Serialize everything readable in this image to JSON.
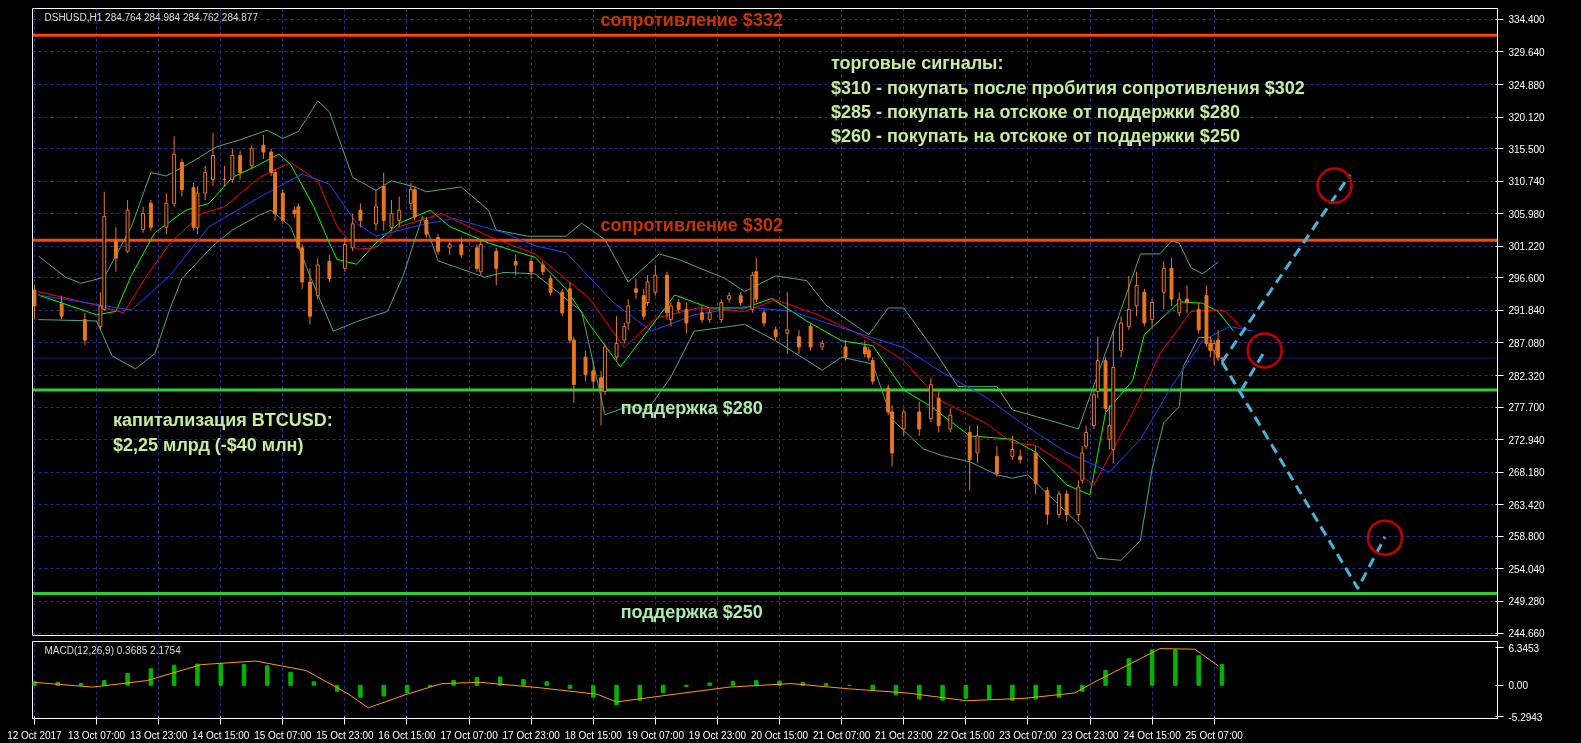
{
  "chart_data": [
    {
      "type": "candlestick",
      "title": "DSHUSD,H1 284.764 284.984 284.762 284.877",
      "color": "#e87722",
      "grid": true,
      "tick_labels": "y",
      "xlim": [
        "2017-10-12T14:30",
        "2017-10-28T08:00"
      ],
      "ylim": [
        244.3,
        336
      ],
      "xticks": [
        {
          "value": "2017-10-12T15:00",
          "label": null
        },
        {
          "value": "2017-10-13T07:00",
          "label": null
        },
        {
          "value": "2017-10-13T23:00",
          "label": null
        },
        {
          "value": "2017-10-14T15:00",
          "label": null
        },
        {
          "value": "2017-10-15T07:00",
          "label": null
        },
        {
          "value": "2017-10-15T23:00",
          "label": null
        },
        {
          "value": "2017-10-16T15:00",
          "label": null
        },
        {
          "value": "2017-10-17T07:00",
          "label": null
        },
        {
          "value": "2017-10-17T23:00",
          "label": null
        },
        {
          "value": "2017-10-18T15:00",
          "label": null
        },
        {
          "value": "2017-10-19T07:00",
          "label": null
        },
        {
          "value": "2017-10-19T23:00",
          "label": null
        },
        {
          "value": "2017-10-20T15:00",
          "label": null
        },
        {
          "value": "2017-10-21T07:00",
          "label": null
        },
        {
          "value": "2017-10-21T23:00",
          "label": null
        },
        {
          "value": "2017-10-22T15:00",
          "label": null
        },
        {
          "value": "2017-10-23T07:00",
          "label": null
        },
        {
          "value": "2017-10-23T23:00",
          "label": null
        },
        {
          "value": "2017-10-24T15:00",
          "label": null
        },
        {
          "value": "2017-10-25T07:00",
          "label": null
        }
      ],
      "yticks": [
        {
          "value": 334.4,
          "label": "334.400"
        },
        {
          "value": 329.64,
          "label": "329.640"
        },
        {
          "value": 324.88,
          "label": "324.880"
        },
        {
          "value": 320.12,
          "label": "320.120"
        },
        {
          "value": 315.5,
          "label": "315.500"
        },
        {
          "value": 310.74,
          "label": "310.740"
        },
        {
          "value": 305.98,
          "label": "305.980"
        },
        {
          "value": 301.22,
          "label": "301.220"
        },
        {
          "value": 296.6,
          "label": "296.600"
        },
        {
          "value": 291.84,
          "label": "291.840"
        },
        {
          "value": 287.08,
          "label": "287.080"
        },
        {
          "value": 282.32,
          "label": "282.320"
        },
        {
          "value": 277.7,
          "label": "277.700"
        },
        {
          "value": 272.94,
          "label": "272.940"
        },
        {
          "value": 268.18,
          "label": "268.180"
        },
        {
          "value": 263.42,
          "label": "263.420"
        },
        {
          "value": 258.8,
          "label": "258.800"
        },
        {
          "value": 254.04,
          "label": "254.040"
        },
        {
          "value": 249.28,
          "label": "249.280"
        },
        {
          "value": 244.66,
          "label": "244.660"
        }
      ],
      "x": [
        "2017-10-12T15:00",
        "2017-10-12T22:00",
        "2017-10-13T04:00",
        "2017-10-13T08:00",
        "2017-10-13T09:00",
        "2017-10-13T12:00",
        "2017-10-13T15:00",
        "2017-10-13T19:00",
        "2017-10-13T21:00",
        "2017-10-14T01:00",
        "2017-10-14T03:00",
        "2017-10-14T05:00",
        "2017-10-14T08:00",
        "2017-10-14T09:00",
        "2017-10-14T11:00",
        "2017-10-14T13:00",
        "2017-10-14T16:00",
        "2017-10-14T18:00",
        "2017-10-14T20:00",
        "2017-10-14T23:00",
        "2017-10-15T02:00",
        "2017-10-15T04:00",
        "2017-10-15T05:00",
        "2017-10-15T07:00",
        "2017-10-15T10:00",
        "2017-10-15T11:00",
        "2017-10-15T12:00",
        "2017-10-15T14:00",
        "2017-10-15T16:00",
        "2017-10-15T19:00",
        "2017-10-15T23:00",
        "2017-10-16T01:00",
        "2017-10-16T03:00",
        "2017-10-16T07:00",
        "2017-10-16T09:00",
        "2017-10-16T11:00",
        "2017-10-16T13:00",
        "2017-10-16T16:00",
        "2017-10-16T17:00",
        "2017-10-16T20:00",
        "2017-10-16T23:00",
        "2017-10-17T02:00",
        "2017-10-17T05:00",
        "2017-10-17T09:00",
        "2017-10-17T10:00",
        "2017-10-17T14:00",
        "2017-10-17T19:00",
        "2017-10-17T23:00",
        "2017-10-18T02:00",
        "2017-10-18T04:00",
        "2017-10-18T07:00",
        "2017-10-18T09:00",
        "2017-10-18T10:00",
        "2017-10-18T13:00",
        "2017-10-18T15:00",
        "2017-10-18T17:00",
        "2017-10-18T18:00",
        "2017-10-18T21:00",
        "2017-10-18T23:00",
        "2017-10-19T00:00",
        "2017-10-19T02:00",
        "2017-10-19T04:00",
        "2017-10-19T05:00",
        "2017-10-19T07:00",
        "2017-10-19T10:00",
        "2017-10-19T11:00",
        "2017-10-19T13:00",
        "2017-10-19T15:00",
        "2017-10-19T19:00",
        "2017-10-19T21:00",
        "2017-10-20T00:00",
        "2017-10-20T02:00",
        "2017-10-20T05:00",
        "2017-10-20T08:00",
        "2017-10-20T09:00",
        "2017-10-20T11:00",
        "2017-10-20T14:00",
        "2017-10-20T17:00",
        "2017-10-20T20:00",
        "2017-10-20T23:00",
        "2017-10-21T02:00",
        "2017-10-21T08:00",
        "2017-10-21T13:00",
        "2017-10-21T14:00",
        "2017-10-21T15:00",
        "2017-10-21T19:00",
        "2017-10-21T20:00",
        "2017-10-21T23:00",
        "2017-10-22T03:00",
        "2017-10-22T06:00",
        "2017-10-22T08:00",
        "2017-10-22T11:00",
        "2017-10-22T16:00",
        "2017-10-22T18:00",
        "2017-10-22T23:00",
        "2017-10-23T03:00",
        "2017-10-23T05:00",
        "2017-10-23T09:00",
        "2017-10-23T12:00",
        "2017-10-23T15:00",
        "2017-10-23T17:00",
        "2017-10-23T20:00",
        "2017-10-23T21:00",
        "2017-10-23T22:00",
        "2017-10-24T00:00",
        "2017-10-24T01:00",
        "2017-10-24T03:00",
        "2017-10-24T04:00",
        "2017-10-24T05:00",
        "2017-10-24T07:00",
        "2017-10-24T09:00",
        "2017-10-24T11:00",
        "2017-10-24T13:00",
        "2017-10-24T15:00",
        "2017-10-24T18:00",
        "2017-10-24T20:00",
        "2017-10-24T22:00",
        "2017-10-25T00:00",
        "2017-10-25T03:00",
        "2017-10-25T05:00",
        "2017-10-25T06:00",
        "2017-10-25T07:00",
        "2017-10-25T08:00",
        "2017-10-25T09:00"
      ],
      "ohlc": [
        [
          294.8,
          295.6,
          290.5,
          292.5
        ],
        [
          292.8,
          294.0,
          290.5,
          291.0
        ],
        [
          290.5,
          291.5,
          286.8,
          287.5
        ],
        [
          289.5,
          294.5,
          289.0,
          292.5
        ],
        [
          292.0,
          309.2,
          291.8,
          305.6
        ],
        [
          302.0,
          304.0,
          297.5,
          299.5
        ],
        [
          300.5,
          308.0,
          300.2,
          306.5
        ],
        [
          303.7,
          307.0,
          303.2,
          306.0
        ],
        [
          307.5,
          308.0,
          303.5,
          304.0
        ],
        [
          304.0,
          309.0,
          303.0,
          307.5
        ],
        [
          307.5,
          317.3,
          307.0,
          314.7
        ],
        [
          313.5,
          314.0,
          308.5,
          309.5
        ],
        [
          309.8,
          310.5,
          303.5,
          304.0
        ],
        [
          304.0,
          310.0,
          303.0,
          309.0
        ],
        [
          309.0,
          313.0,
          308.0,
          312.0
        ],
        [
          311.0,
          317.8,
          310.0,
          314.5
        ],
        [
          311.0,
          313.0,
          310.0,
          311.0
        ],
        [
          311.0,
          315.5,
          310.5,
          314.5
        ],
        [
          314.5,
          315.2,
          311.0,
          312.0
        ],
        [
          313.0,
          316.0,
          312.5,
          315.5
        ],
        [
          316.0,
          317.5,
          314.0,
          315.0
        ],
        [
          315.0,
          315.5,
          311.5,
          312.0
        ],
        [
          312.0,
          312.5,
          305.0,
          306.0
        ],
        [
          309.0,
          309.5,
          304.5,
          305.0
        ],
        [
          306.5,
          307.0,
          305.5,
          306.0
        ],
        [
          307.0,
          307.5,
          300.8,
          301.0
        ],
        [
          301.0,
          301.5,
          295.0,
          296.0
        ],
        [
          296.0,
          298.0,
          289.8,
          291.0
        ],
        [
          294.0,
          299.5,
          293.5,
          298.5
        ],
        [
          299.0,
          300.0,
          296.0,
          296.5
        ],
        [
          298.0,
          302.5,
          297.5,
          301.5
        ],
        [
          301.0,
          306.0,
          300.5,
          304.5
        ],
        [
          306.5,
          307.5,
          304.0,
          305.0
        ],
        [
          304.5,
          309.5,
          303.5,
          307.0
        ],
        [
          310.0,
          312.0,
          303.5,
          305.0
        ],
        [
          304.0,
          308.0,
          303.5,
          306.0
        ],
        [
          305.0,
          308.5,
          304.0,
          306.5
        ],
        [
          307.5,
          310.5,
          306.5,
          309.5
        ],
        [
          309.5,
          310.0,
          305.0,
          305.5
        ],
        [
          305.0,
          305.5,
          302.5,
          303.0
        ],
        [
          302.5,
          303.0,
          300.0,
          300.5
        ],
        [
          301.0,
          302.0,
          300.0,
          301.5
        ],
        [
          301.5,
          302.5,
          299.5,
          300.0
        ],
        [
          301.0,
          301.5,
          297.5,
          298.0
        ],
        [
          297.5,
          302.0,
          297.0,
          301.5
        ],
        [
          300.5,
          301.0,
          295.5,
          298.0
        ],
        [
          299.0,
          300.0,
          297.0,
          298.5
        ],
        [
          299.0,
          299.5,
          296.5,
          297.5
        ],
        [
          298.5,
          299.0,
          297.0,
          297.5
        ],
        [
          296.5,
          297.0,
          294.0,
          294.5
        ],
        [
          294.5,
          295.0,
          291.0,
          291.5
        ],
        [
          295.0,
          296.0,
          287.0,
          287.5
        ],
        [
          287.5,
          288.0,
          278.3,
          281.0
        ],
        [
          285.0,
          286.0,
          281.5,
          282.5
        ],
        [
          283.0,
          284.5,
          280.0,
          281.5
        ],
        [
          282.0,
          283.0,
          275.0,
          280.5
        ],
        [
          280.0,
          287.0,
          279.5,
          286.5
        ],
        [
          285.0,
          291.0,
          284.5,
          287.0
        ],
        [
          287.5,
          290.0,
          287.0,
          289.5
        ],
        [
          290.0,
          293.5,
          289.0,
          292.5
        ],
        [
          295.0,
          296.5,
          293.5,
          294.5
        ],
        [
          294.0,
          295.0,
          290.5,
          291.0
        ],
        [
          293.0,
          297.0,
          292.5,
          296.0
        ],
        [
          294.5,
          298.5,
          294.0,
          297.0
        ],
        [
          297.0,
          297.5,
          290.5,
          291.5
        ],
        [
          290.5,
          293.0,
          289.5,
          292.5
        ],
        [
          293.0,
          293.5,
          291.5,
          292.0
        ],
        [
          292.0,
          293.0,
          288.5,
          290.0
        ],
        [
          291.5,
          292.5,
          290.0,
          290.5
        ],
        [
          290.5,
          292.0,
          290.0,
          291.5
        ],
        [
          290.5,
          293.5,
          290.0,
          293.0
        ],
        [
          293.5,
          294.5,
          293.0,
          294.0
        ],
        [
          294.0,
          294.5,
          292.5,
          293.0
        ],
        [
          292.0,
          297.5,
          291.5,
          297.0
        ],
        [
          297.5,
          299.5,
          293.0,
          293.5
        ],
        [
          291.5,
          292.0,
          289.5,
          290.0
        ],
        [
          289.0,
          289.5,
          287.5,
          288.0
        ],
        [
          288.5,
          294.5,
          285.5,
          289.0
        ],
        [
          288.0,
          289.0,
          285.5,
          286.5
        ],
        [
          289.5,
          290.0,
          286.0,
          286.5
        ],
        [
          286.5,
          287.5,
          286.0,
          287.0
        ],
        [
          286.5,
          287.5,
          284.5,
          285.0
        ],
        [
          286.5,
          287.5,
          285.0,
          285.5
        ],
        [
          286.0,
          286.5,
          284.5,
          285.0
        ],
        [
          284.5,
          285.0,
          281.0,
          281.5
        ],
        [
          280.5,
          281.0,
          276.5,
          277.0
        ],
        [
          277.0,
          278.0,
          269.0,
          271.0
        ],
        [
          274.5,
          277.5,
          273.5,
          277.0
        ],
        [
          277.0,
          278.5,
          273.5,
          274.5
        ],
        [
          276.0,
          282.0,
          275.5,
          281.0
        ],
        [
          279.0,
          280.0,
          274.0,
          275.0
        ],
        [
          274.5,
          277.5,
          274.0,
          276.5
        ],
        [
          274.0,
          275.0,
          265.5,
          270.0
        ],
        [
          271.0,
          275.0,
          269.5,
          273.5
        ],
        [
          270.5,
          272.0,
          267.5,
          268.0
        ],
        [
          270.5,
          273.5,
          270.0,
          271.5
        ],
        [
          270.5,
          271.5,
          269.5,
          270.0
        ],
        [
          271.0,
          272.0,
          265.0,
          266.5
        ],
        [
          265.5,
          266.0,
          260.5,
          262.0
        ],
        [
          262.0,
          265.5,
          261.5,
          265.0
        ],
        [
          265.0,
          265.5,
          261.0,
          262.0
        ],
        [
          262.0,
          267.0,
          261.0,
          266.0
        ],
        [
          267.0,
          272.0,
          266.5,
          271.0
        ],
        [
          272.0,
          275.0,
          271.5,
          274.0
        ],
        [
          275.0,
          280.0,
          274.5,
          279.5
        ],
        [
          280.0,
          288.0,
          279.0,
          284.5
        ],
        [
          284.5,
          285.0,
          277.0,
          277.5
        ],
        [
          273.0,
          278.0,
          271.5,
          275.0
        ],
        [
          271.5,
          289.0,
          269.5,
          283.5
        ],
        [
          286.0,
          291.0,
          285.0,
          290.0
        ],
        [
          289.5,
          296.9,
          289.0,
          292.0
        ],
        [
          292.5,
          297.5,
          291.0,
          295.5
        ],
        [
          294.5,
          295.0,
          289.5,
          290.0
        ],
        [
          290.5,
          293.5,
          289.5,
          293.0
        ],
        [
          294.5,
          299.0,
          292.0,
          298.0
        ],
        [
          298.0,
          299.5,
          292.5,
          293.5
        ],
        [
          291.5,
          294.5,
          291.0,
          293.5
        ],
        [
          293.5,
          295.5,
          291.5,
          293.0
        ],
        [
          292.0,
          293.0,
          288.5,
          289.0
        ],
        [
          294.0,
          295.5,
          286.5,
          287.0
        ],
        [
          287.0,
          288.0,
          285.0,
          286.0
        ],
        [
          286.0,
          287.5,
          283.8,
          287.0
        ],
        [
          287.5,
          289.0,
          284.5,
          285.0
        ],
        [
          284.764,
          284.984,
          284.762,
          284.877
        ]
      ],
      "series": [
        {
          "type": "line",
          "color": "#4fa87a",
          "x": [
            "2017-10-12T16:00",
            "2017-10-12T23:00",
            "2017-10-13T03:00",
            "2017-10-13T09:00",
            "2017-10-13T16:00",
            "2017-10-13T21:00",
            "2017-10-14T01:00",
            "2017-10-14T08:00",
            "2017-10-14T14:00",
            "2017-10-14T20:00",
            "2017-10-15T03:00",
            "2017-10-15T07:00",
            "2017-10-15T11:00",
            "2017-10-15T16:00",
            "2017-10-15T19:00",
            "2017-10-16T01:00",
            "2017-10-16T07:00",
            "2017-10-16T11:00",
            "2017-10-16T17:00",
            "2017-10-16T20:00",
            "2017-10-17T05:00",
            "2017-10-17T12:00",
            "2017-10-17T14:00",
            "2017-10-17T22:00",
            "2017-10-18T08:00",
            "2017-10-18T12:00",
            "2017-10-18T18:00",
            "2017-10-19T00:00",
            "2017-10-19T08:00",
            "2017-10-19T13:00",
            "2017-10-20T01:00",
            "2017-10-20T06:00",
            "2017-10-20T14:00",
            "2017-10-20T22:00",
            "2017-10-21T03:00",
            "2017-10-21T14:00",
            "2017-10-21T19:00",
            "2017-10-21T23:00",
            "2017-10-22T07:00",
            "2017-10-22T13:00",
            "2017-10-22T23:00",
            "2017-10-23T03:00",
            "2017-10-23T13:00",
            "2017-10-23T20:00",
            "2017-10-24T08:00",
            "2017-10-24T12:00",
            "2017-10-24T17:00",
            "2017-10-24T20:00",
            "2017-10-24T22:00",
            "2017-10-25T01:00",
            "2017-10-25T04:00",
            "2017-10-25T08:00"
          ],
          "values": [
            299.8,
            296.7,
            295.8,
            296.7,
            304.1,
            312.0,
            311.5,
            313.7,
            315.8,
            316.8,
            318.2,
            317.0,
            318.0,
            322.5,
            320.9,
            311.3,
            309.4,
            310.8,
            309.9,
            309.2,
            309.9,
            306.5,
            303.6,
            302.7,
            302.7,
            304.6,
            302.2,
            296.0,
            300.1,
            299.3,
            296.5,
            294.6,
            296.9,
            296.2,
            292.6,
            288.3,
            292.2,
            292.2,
            285.9,
            280.7,
            280.7,
            277.3,
            275.7,
            274.5,
            293.6,
            300.1,
            300.1,
            302.0,
            301.7,
            298.1,
            297.2,
            298.9
          ]
        },
        {
          "type": "line",
          "color": "#4fa87a",
          "x": [
            "2017-10-12T16:00",
            "2017-10-13T07:00",
            "2017-10-13T11:00",
            "2017-10-13T17:00",
            "2017-10-13T22:00",
            "2017-10-14T02:00",
            "2017-10-14T05:00",
            "2017-10-14T13:00",
            "2017-10-14T18:00",
            "2017-10-15T01:00",
            "2017-10-15T04:00",
            "2017-10-15T09:00",
            "2017-10-15T14:00",
            "2017-10-15T20:00",
            "2017-10-16T02:00",
            "2017-10-16T10:00",
            "2017-10-16T14:00",
            "2017-10-16T19:00",
            "2017-10-16T23:00",
            "2017-10-17T11:00",
            "2017-10-17T16:00",
            "2017-10-18T00:00",
            "2017-10-18T12:00",
            "2017-10-18T18:00",
            "2017-10-19T00:00",
            "2017-10-19T05:00",
            "2017-10-19T11:00",
            "2017-10-19T17:00",
            "2017-10-20T06:00",
            "2017-10-20T14:00",
            "2017-10-21T02:00",
            "2017-10-21T07:00",
            "2017-10-21T15:00",
            "2017-10-21T20:00",
            "2017-10-22T04:00",
            "2017-10-22T09:00",
            "2017-10-22T16:00",
            "2017-10-22T23:00",
            "2017-10-23T03:00",
            "2017-10-23T07:00",
            "2017-10-23T21:00",
            "2017-10-24T01:00",
            "2017-10-24T07:00",
            "2017-10-24T12:00",
            "2017-10-24T15:00",
            "2017-10-24T18:00",
            "2017-10-24T22:00",
            "2017-10-24T23:00",
            "2017-10-25T03:00",
            "2017-10-25T06:00",
            "2017-10-25T08:00"
          ],
          "values": [
            290.5,
            290.3,
            285.2,
            283.3,
            285.5,
            292.2,
            296.5,
            301.3,
            303.6,
            305.8,
            306.5,
            304.1,
            296.9,
            288.8,
            290.2,
            291.7,
            296.9,
            305.6,
            299.1,
            296.7,
            297.4,
            297.2,
            291.7,
            276.6,
            277.8,
            277.3,
            282.1,
            288.8,
            289.8,
            287.4,
            283.1,
            285.0,
            284.0,
            275.9,
            271.6,
            270.6,
            269.7,
            267.8,
            267.3,
            267.8,
            260.1,
            255.6,
            255.3,
            258.2,
            268.7,
            275.4,
            277.8,
            283.6,
            287.9,
            287.9,
            284.5
          ]
        },
        {
          "type": "line",
          "color": "#00ff00",
          "x": [
            "2017-10-12T16:00",
            "2017-10-13T07:00",
            "2017-10-13T12:00",
            "2017-10-13T16:00",
            "2017-10-13T22:00",
            "2017-10-14T06:00",
            "2017-10-14T12:00",
            "2017-10-14T18:00",
            "2017-10-15T01:00",
            "2017-10-15T06:00",
            "2017-10-15T09:00",
            "2017-10-15T15:00",
            "2017-10-15T19:00",
            "2017-10-15T21:00",
            "2017-10-16T02:00",
            "2017-10-16T07:00",
            "2017-10-16T13:00",
            "2017-10-16T21:00",
            "2017-10-17T02:00",
            "2017-10-17T12:00",
            "2017-10-18T00:00",
            "2017-10-18T08:00",
            "2017-10-18T14:00",
            "2017-10-18T22:00",
            "2017-10-19T05:00",
            "2017-10-19T12:00",
            "2017-10-19T21:00",
            "2017-10-20T06:00",
            "2017-10-20T13:00",
            "2017-10-20T22:00",
            "2017-10-21T07:00",
            "2017-10-21T15:00",
            "2017-10-21T23:00",
            "2017-10-22T06:00",
            "2017-10-22T16:00",
            "2017-10-23T03:00",
            "2017-10-23T09:00",
            "2017-10-23T17:00",
            "2017-10-23T23:00",
            "2017-10-24T03:00",
            "2017-10-24T10:00",
            "2017-10-24T13:00",
            "2017-10-24T22:00",
            "2017-10-25T04:00",
            "2017-10-25T08:00",
            "2017-10-25T12:00"
          ],
          "values": [
            294.1,
            291.2,
            291.7,
            297.0,
            303.2,
            306.5,
            307.5,
            311.3,
            313.2,
            314.7,
            313.2,
            307.0,
            301.7,
            299.3,
            298.6,
            301.7,
            304.6,
            306.5,
            304.1,
            301.7,
            299.6,
            295.0,
            289.8,
            283.6,
            288.8,
            294.1,
            292.2,
            292.2,
            293.6,
            290.3,
            287.4,
            286.7,
            280.2,
            277.8,
            273.5,
            273.0,
            271.1,
            266.3,
            264.9,
            276.9,
            281.6,
            288.3,
            293.1,
            292.9,
            291.7,
            288.8
          ]
        },
        {
          "type": "line",
          "color": "#ff0000",
          "x": [
            "2017-10-12T16:00",
            "2017-10-13T07:00",
            "2017-10-13T14:00",
            "2017-10-13T20:00",
            "2017-10-14T02:00",
            "2017-10-14T10:00",
            "2017-10-14T16:00",
            "2017-10-15T01:00",
            "2017-10-15T09:00",
            "2017-10-15T16:00",
            "2017-10-15T21:00",
            "2017-10-16T02:00",
            "2017-10-16T07:00",
            "2017-10-16T13:00",
            "2017-10-17T00:00",
            "2017-10-17T12:00",
            "2017-10-18T00:00",
            "2017-10-18T14:00",
            "2017-10-18T23:00",
            "2017-10-19T07:00",
            "2017-10-19T18:00",
            "2017-10-20T06:00",
            "2017-10-20T14:00",
            "2017-10-21T01:00",
            "2017-10-21T15:00",
            "2017-10-21T23:00",
            "2017-10-22T08:00",
            "2017-10-22T20:00",
            "2017-10-23T03:00",
            "2017-10-23T09:00",
            "2017-10-23T17:00",
            "2017-10-24T00:00",
            "2017-10-24T10:00",
            "2017-10-24T17:00",
            "2017-10-25T01:00",
            "2017-10-25T08:00",
            "2017-10-25T10:00",
            "2017-10-25T14:00"
          ],
          "values": [
            294.6,
            292.6,
            291.5,
            297.0,
            301.7,
            306.0,
            307.0,
            311.3,
            313.5,
            310.8,
            304.1,
            300.8,
            301.0,
            304.1,
            306.0,
            302.7,
            300.1,
            293.6,
            286.4,
            290.7,
            292.2,
            291.7,
            293.4,
            291.2,
            287.4,
            284.5,
            278.8,
            275.4,
            272.5,
            272.1,
            269.2,
            266.3,
            276.9,
            285.5,
            291.7,
            291.9,
            291.7,
            289.3
          ]
        },
        {
          "type": "line",
          "color": "#2040ff",
          "x": [
            "2017-10-12T16:00",
            "2017-10-13T16:00",
            "2017-10-14T02:00",
            "2017-10-14T12:00",
            "2017-10-15T01:00",
            "2017-10-15T12:00",
            "2017-10-15T19:00",
            "2017-10-16T02:00",
            "2017-10-16T07:00",
            "2017-10-16T19:00",
            "2017-10-17T03:00",
            "2017-10-17T16:00",
            "2017-10-18T00:00",
            "2017-10-18T08:00",
            "2017-10-18T20:00",
            "2017-10-19T06:00",
            "2017-10-19T17:00",
            "2017-10-20T06:00",
            "2017-10-20T18:00",
            "2017-10-21T07:00",
            "2017-10-21T23:00",
            "2017-10-22T08:00",
            "2017-10-22T20:00",
            "2017-10-23T04:00",
            "2017-10-23T09:00",
            "2017-10-23T17:00",
            "2017-10-24T04:00",
            "2017-10-24T12:00",
            "2017-10-24T20:00",
            "2017-10-25T04:00",
            "2017-10-25T11:00",
            "2017-10-25T17:00"
          ],
          "values": [
            294.1,
            291.9,
            297.0,
            304.1,
            308.4,
            311.8,
            310.3,
            304.6,
            302.7,
            304.4,
            305.3,
            303.2,
            301.3,
            300.3,
            293.1,
            288.8,
            291.2,
            292.4,
            291.7,
            289.3,
            286.4,
            283.1,
            279.2,
            275.9,
            274.0,
            271.1,
            268.2,
            273.0,
            280.7,
            287.4,
            289.5,
            288.8
          ]
        },
        {
          "type": "line",
          "color": "#4ab4d8",
          "line_style": "dashed",
          "x": [
            "2017-10-25T09:00",
            "2017-10-26T18:00"
          ],
          "values": [
            284.3,
            311.7
          ]
        },
        {
          "type": "line",
          "color": "#4ab4d8",
          "line_style": "dashed",
          "x": [
            "2017-10-25T09:00",
            "2017-10-26T20:00",
            "2017-10-27T03:00"
          ],
          "values": [
            284.3,
            251.2,
            258.7
          ]
        },
        {
          "type": "line",
          "color": "#4ab4d8",
          "line_style": "dashed",
          "x": [
            "2017-10-25T14:00",
            "2017-10-25T20:00"
          ],
          "values": [
            280.2,
            285.9
          ]
        },
        {
          "type": "scatter",
          "color": "#c00000",
          "marker": "circle",
          "x": [
            "2017-10-25T20:00",
            "2017-10-26T14:00",
            "2017-10-27T03:00"
          ],
          "values": [
            286.0,
            310.1,
            258.6
          ]
        }
      ],
      "ref_lines": [
        {
          "axis": "y",
          "value": 332.073,
          "label": "сопротивление $332",
          "color": "#ff4500"
        },
        {
          "axis": "y",
          "value": 302.097,
          "label": "сопротивление $302",
          "color": "#ff4500"
        },
        {
          "axis": "y",
          "value": 280.199,
          "label": "поддержка $280",
          "color": "#32cd32"
        },
        {
          "axis": "y",
          "value": 250.44,
          "label": "поддержка $250",
          "color": "#32cd32"
        },
        {
          "axis": "y",
          "value": 284.877,
          "color": "#1a1a8c"
        }
      ],
      "annotations": [
        "торговые сигналы:",
        "$310 - покупать после пробития сопротивления $302",
        "$285 - покупать на отскоке от поддержки $280",
        "$260 - покупать на отскоке от поддержки $250",
        "капитализация BTCUSD:",
        "$2,25 млрд (-$40 млн)"
      ]
    },
    {
      "type": "bar",
      "title": "MACD(12,26,9) 0.3685 2.1754",
      "grid": "x",
      "xlim": [
        "2017-10-12T14:30",
        "2017-10-28T08:00"
      ],
      "ylim": [
        -5.6,
        7.4
      ],
      "xticks": [
        {
          "value": "2017-10-12T15:00",
          "label": "12 Oct 2017"
        },
        {
          "value": "2017-10-13T07:00",
          "label": "13 Oct 07:00"
        },
        {
          "value": "2017-10-13T23:00",
          "label": "13 Oct 23:00"
        },
        {
          "value": "2017-10-14T15:00",
          "label": "14 Oct 15:00"
        },
        {
          "value": "2017-10-15T07:00",
          "label": "15 Oct 07:00"
        },
        {
          "value": "2017-10-15T23:00",
          "label": "15 Oct 23:00"
        },
        {
          "value": "2017-10-16T15:00",
          "label": "16 Oct 15:00"
        },
        {
          "value": "2017-10-17T07:00",
          "label": "17 Oct 07:00"
        },
        {
          "value": "2017-10-17T23:00",
          "label": "17 Oct 23:00"
        },
        {
          "value": "2017-10-18T15:00",
          "label": "18 Oct 15:00"
        },
        {
          "value": "2017-10-19T07:00",
          "label": "19 Oct 07:00"
        },
        {
          "value": "2017-10-19T23:00",
          "label": "19 Oct 23:00"
        },
        {
          "value": "2017-10-20T15:00",
          "label": "20 Oct 15:00"
        },
        {
          "value": "2017-10-21T07:00",
          "label": "21 Oct 07:00"
        },
        {
          "value": "2017-10-21T23:00",
          "label": "21 Oct 23:00"
        },
        {
          "value": "2017-10-22T15:00",
          "label": "22 Oct 15:00"
        },
        {
          "value": "2017-10-23T07:00",
          "label": "23 Oct 07:00"
        },
        {
          "value": "2017-10-23T23:00",
          "label": "23 Oct 23:00"
        },
        {
          "value": "2017-10-24T15:00",
          "label": "24 Oct 15:00"
        },
        {
          "value": "2017-10-25T07:00",
          "label": "25 Oct 07:00"
        }
      ],
      "yticks": [
        6.3453,
        {
          "value": 0,
          "label": "0.00"
        },
        -5.2943
      ],
      "series": [
        {
          "type": "bar",
          "color": "#00b400",
          "x": [
            "2017-10-12T15:00",
            "2017-10-12T21:00",
            "2017-10-13T03:00",
            "2017-10-13T09:00",
            "2017-10-13T15:00",
            "2017-10-13T21:00",
            "2017-10-14T03:00",
            "2017-10-14T09:00",
            "2017-10-14T15:00",
            "2017-10-14T21:00",
            "2017-10-15T03:00",
            "2017-10-15T09:00",
            "2017-10-15T15:00",
            "2017-10-15T21:00",
            "2017-10-16T03:00",
            "2017-10-16T09:00",
            "2017-10-16T15:00",
            "2017-10-16T21:00",
            "2017-10-17T03:00",
            "2017-10-17T09:00",
            "2017-10-17T15:00",
            "2017-10-17T21:00",
            "2017-10-18T03:00",
            "2017-10-18T09:00",
            "2017-10-18T15:00",
            "2017-10-18T21:00",
            "2017-10-19T03:00",
            "2017-10-19T09:00",
            "2017-10-19T15:00",
            "2017-10-19T21:00",
            "2017-10-20T03:00",
            "2017-10-20T09:00",
            "2017-10-20T15:00",
            "2017-10-20T21:00",
            "2017-10-21T03:00",
            "2017-10-21T09:00",
            "2017-10-21T15:00",
            "2017-10-21T21:00",
            "2017-10-22T03:00",
            "2017-10-22T09:00",
            "2017-10-22T15:00",
            "2017-10-22T21:00",
            "2017-10-23T03:00",
            "2017-10-23T09:00",
            "2017-10-23T15:00",
            "2017-10-23T21:00",
            "2017-10-24T03:00",
            "2017-10-24T09:00",
            "2017-10-24T15:00",
            "2017-10-24T21:00",
            "2017-10-25T03:00",
            "2017-10-25T09:00"
          ],
          "values": [
            0.6,
            0.5,
            0.3,
            0.8,
            2.0,
            2.8,
            3.4,
            3.6,
            3.6,
            3.5,
            3.3,
            2.2,
            0.6,
            -1.0,
            -2.0,
            -1.8,
            -1.2,
            -0.2,
            0.8,
            1.3,
            1.4,
            1.0,
            0.6,
            -0.5,
            -2.0,
            -3.3,
            -2.5,
            -1.2,
            -0.2,
            0.4,
            0.7,
            0.8,
            0.7,
            0.5,
            0.3,
            0,
            -0.8,
            -1.6,
            -2.3,
            -2.5,
            -2.2,
            -2.3,
            -2.5,
            -2.3,
            -2.0,
            -1.0,
            2.5,
            4.5,
            6.0,
            6.0,
            5.0,
            3.5
          ]
        },
        {
          "type": "line",
          "color": "#ff9900",
          "x": [
            "2017-10-12T15:00",
            "2017-10-13T06:00",
            "2017-10-13T20:00",
            "2017-10-14T10:00",
            "2017-10-15T00:00",
            "2017-10-15T13:00",
            "2017-10-16T00:00",
            "2017-10-16T05:00",
            "2017-10-16T15:00",
            "2017-10-17T00:00",
            "2017-10-17T10:00",
            "2017-10-18T01:00",
            "2017-10-18T16:00",
            "2017-10-18T21:00",
            "2017-10-19T12:00",
            "2017-10-20T02:00",
            "2017-10-20T18:00",
            "2017-10-21T09:00",
            "2017-10-22T00:00",
            "2017-10-22T15:00",
            "2017-10-23T06:00",
            "2017-10-23T19:00",
            "2017-10-24T00:00",
            "2017-10-24T12:00",
            "2017-10-24T17:00",
            "2017-10-25T02:00",
            "2017-10-25T08:00"
          ],
          "values": [
            0.5,
            -0.3,
            0.8,
            3.5,
            4.1,
            2.5,
            -1.5,
            -3.8,
            -1.5,
            0.3,
            0.5,
            -0.4,
            -1.5,
            -2.8,
            -1.5,
            -0.3,
            0.3,
            -0.6,
            -1.3,
            -2.6,
            -2.2,
            -1.3,
            0.5,
            4.5,
            6.2,
            6.1,
            3.3
          ]
        }
      ]
    }
  ]
}
